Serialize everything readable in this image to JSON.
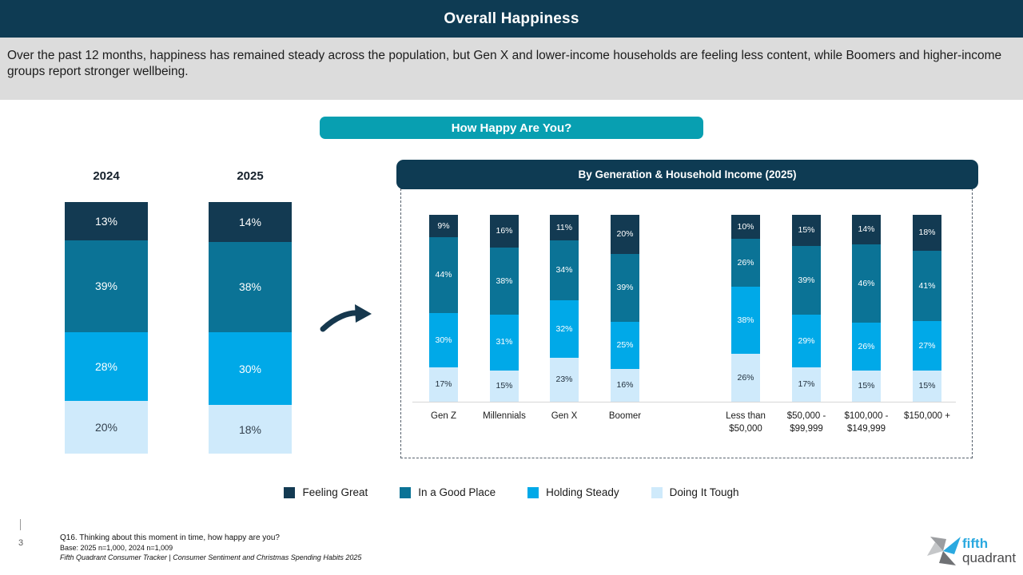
{
  "header": {
    "title": "Overall Happiness"
  },
  "subtitle": "Over the past 12 months, happiness has remained steady across the population, but Gen X and lower-income households are feeling less content, while Boomers and higher-income groups report stronger wellbeing.",
  "question_pill": "How Happy Are You?",
  "colors": {
    "brand_navy": "#0e3b53",
    "pill_teal": "#089fb1",
    "band_gray": "#dcdcdc",
    "feeling_great": "#133a52",
    "in_good_place": "#0b7396",
    "holding_steady": "#00a9e8",
    "doing_it_tough": "#cfeafb",
    "logo_blue": "#2aa9e0"
  },
  "chart_data": [
    {
      "type": "bar",
      "subtype": "stacked-100",
      "title": "",
      "categories": [
        "2024",
        "2025"
      ],
      "series": [
        {
          "name": "Feeling Great",
          "color": "#133a52",
          "label_color": "#ffffff",
          "values": [
            13,
            14
          ]
        },
        {
          "name": "In a Good Place",
          "color": "#0b7396",
          "label_color": "#ffffff",
          "values": [
            39,
            38
          ]
        },
        {
          "name": "Holding Steady",
          "color": "#00a9e8",
          "label_color": "#ffffff",
          "values": [
            28,
            30
          ]
        },
        {
          "name": "Doing It Tough",
          "color": "#cfeafb",
          "label_color": "#33414e",
          "values": [
            20,
            18
          ]
        }
      ],
      "value_suffix": "%",
      "ylim": [
        0,
        100
      ],
      "grid": false,
      "legend_position": "bottom"
    },
    {
      "type": "bar",
      "subtype": "stacked-100",
      "title": "By Generation & Household Income (2025)",
      "categories": [
        "Gen Z",
        "Millennials",
        "Gen X",
        "Boomer",
        "Less than\n$50,000",
        "$50,000 -\n$99,999",
        "$100,000 -\n$149,999",
        "$150,000 +"
      ],
      "series": [
        {
          "name": "Feeling Great",
          "color": "#133a52",
          "label_color": "#ffffff",
          "values": [
            9,
            16,
            11,
            20,
            10,
            15,
            14,
            18
          ]
        },
        {
          "name": "In a Good Place",
          "color": "#0b7396",
          "label_color": "#ffffff",
          "values": [
            44,
            38,
            34,
            39,
            26,
            39,
            46,
            41
          ]
        },
        {
          "name": "Holding Steady",
          "color": "#00a9e8",
          "label_color": "#ffffff",
          "values": [
            30,
            31,
            32,
            25,
            38,
            29,
            26,
            27
          ]
        },
        {
          "name": "Doing It Tough",
          "color": "#cfeafb",
          "label_color": "#22313e",
          "values": [
            17,
            15,
            23,
            16,
            26,
            17,
            15,
            15
          ]
        }
      ],
      "value_suffix": "%",
      "ylim": [
        0,
        100
      ],
      "grid": false,
      "legend_position": "bottom"
    }
  ],
  "legend": [
    {
      "label": "Feeling Great",
      "color": "#133a52"
    },
    {
      "label": "In a Good Place",
      "color": "#0b7396"
    },
    {
      "label": "Holding Steady",
      "color": "#00a9e8"
    },
    {
      "label": "Doing It Tough",
      "color": "#cfeafb"
    }
  ],
  "footer": {
    "page_number": "3",
    "question_note": "Q16. Thinking about this moment in time, how happy are you?",
    "base_note": "Base: 2025 n=1,000, 2024 n=1,009",
    "source_note": "Fifth Quadrant Consumer Tracker | Consumer Sentiment and Christmas Spending Habits 2025"
  },
  "logo": {
    "line1": "fifth",
    "line2": "quadrant"
  }
}
